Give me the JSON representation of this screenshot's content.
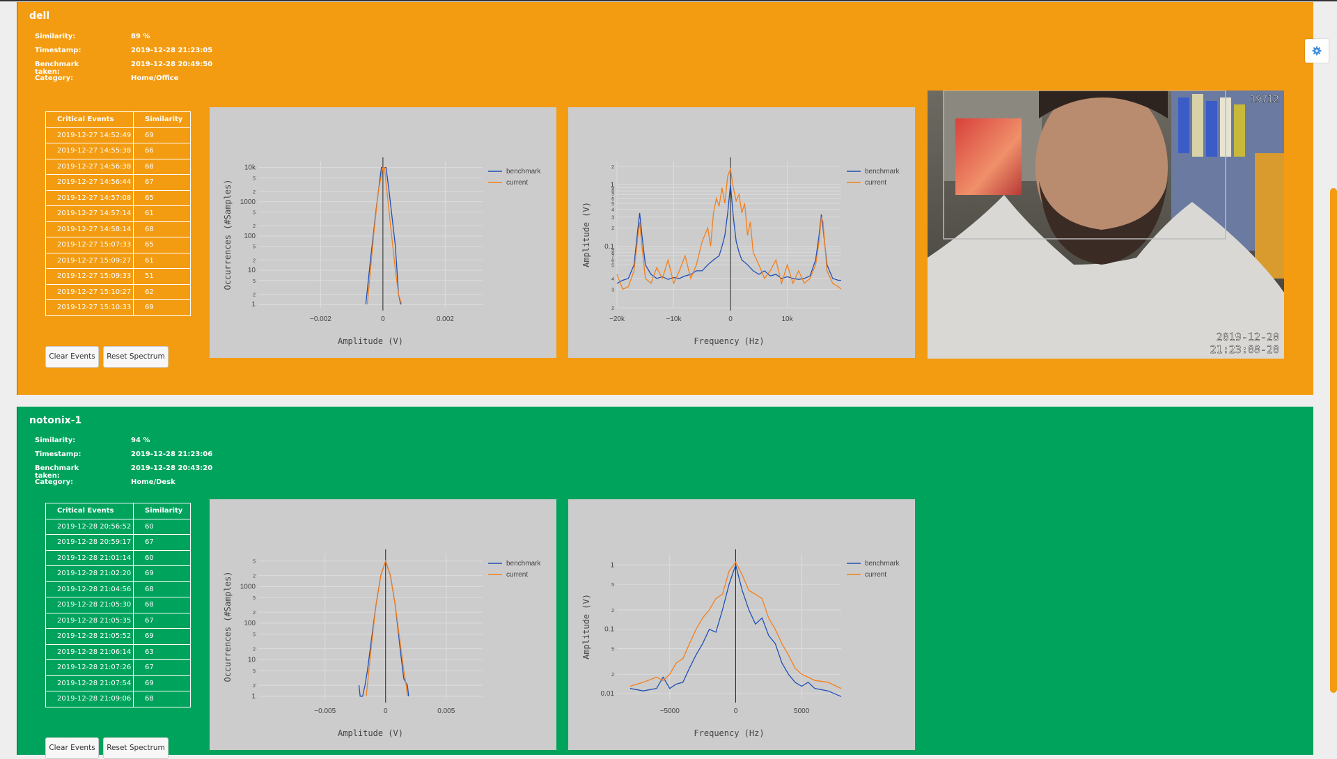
{
  "devices": [
    {
      "name": "dell",
      "status_color": "#f39c12",
      "info": [
        {
          "label": "Similarity:",
          "value": "89 %"
        },
        {
          "label": "Timestamp:",
          "value": "2019-12-28 21:23:05"
        },
        {
          "label": "Benchmark taken:",
          "value": "2019-12-28 20:49:50"
        },
        {
          "label": "Category:",
          "value": "Home/Office"
        }
      ],
      "events_header": {
        "col1": "Critical Events",
        "col2": "Similarity"
      },
      "events": [
        {
          "time": "2019-12-27 14:52:49",
          "sim": "69"
        },
        {
          "time": "2019-12-27 14:55:38",
          "sim": "66"
        },
        {
          "time": "2019-12-27 14:56:38",
          "sim": "68"
        },
        {
          "time": "2019-12-27 14:56:44",
          "sim": "67"
        },
        {
          "time": "2019-12-27 14:57:08",
          "sim": "65"
        },
        {
          "time": "2019-12-27 14:57:14",
          "sim": "61"
        },
        {
          "time": "2019-12-27 14:58:14",
          "sim": "68"
        },
        {
          "time": "2019-12-27 15:07:33",
          "sim": "65"
        },
        {
          "time": "2019-12-27 15:09:27",
          "sim": "61"
        },
        {
          "time": "2019-12-27 15:09:33",
          "sim": "51"
        },
        {
          "time": "2019-12-27 15:10:27",
          "sim": "62"
        },
        {
          "time": "2019-12-27 15:10:33",
          "sim": "69"
        }
      ],
      "buttons": {
        "clear": "Clear Events",
        "reset": "Reset Spectrum"
      },
      "camera": {
        "frame_no": "19712",
        "date": "2019-12-28",
        "time": "21:23:08-20"
      }
    },
    {
      "name": "notonix-1",
      "status_color": "#00a35c",
      "info": [
        {
          "label": "Similarity:",
          "value": "94 %"
        },
        {
          "label": "Timestamp:",
          "value": "2019-12-28 21:23:06"
        },
        {
          "label": "Benchmark taken:",
          "value": "2019-12-28 20:43:20"
        },
        {
          "label": "Category:",
          "value": "Home/Desk"
        }
      ],
      "events_header": {
        "col1": "Critical Events",
        "col2": "Similarity"
      },
      "events": [
        {
          "time": "2019-12-28 20:56:52",
          "sim": "60"
        },
        {
          "time": "2019-12-28 20:59:17",
          "sim": "67"
        },
        {
          "time": "2019-12-28 21:01:14",
          "sim": "60"
        },
        {
          "time": "2019-12-28 21:02:20",
          "sim": "69"
        },
        {
          "time": "2019-12-28 21:04:56",
          "sim": "68"
        },
        {
          "time": "2019-12-28 21:05:30",
          "sim": "68"
        },
        {
          "time": "2019-12-28 21:05:35",
          "sim": "67"
        },
        {
          "time": "2019-12-28 21:05:52",
          "sim": "69"
        },
        {
          "time": "2019-12-28 21:06:14",
          "sim": "63"
        },
        {
          "time": "2019-12-28 21:07:26",
          "sim": "67"
        },
        {
          "time": "2019-12-28 21:07:54",
          "sim": "69"
        },
        {
          "time": "2019-12-28 21:09:06",
          "sim": "68"
        }
      ],
      "buttons": {
        "clear": "Clear Events",
        "reset": "Reset Spectrum"
      }
    }
  ],
  "chart_data": [
    {
      "type": "line",
      "device": "dell",
      "kind": "histogram",
      "xlabel": "Amplitude (V)",
      "ylabel": "Occurrences (#Samples)",
      "y_scale": "log",
      "ylim": [
        0.8,
        15000
      ],
      "xlim": [
        -0.004,
        0.0032
      ],
      "xticks": [
        {
          "v": -0.002,
          "t": "−0.002"
        },
        {
          "v": 0,
          "t": "0"
        },
        {
          "v": 0.002,
          "t": "0.002"
        }
      ],
      "yticks": [
        {
          "v": 1,
          "t": "1"
        },
        {
          "v": 2,
          "t": "2"
        },
        {
          "v": 5,
          "t": "5"
        },
        {
          "v": 10,
          "t": "10"
        },
        {
          "v": 20,
          "t": "2"
        },
        {
          "v": 50,
          "t": "5"
        },
        {
          "v": 100,
          "t": "100"
        },
        {
          "v": 200,
          "t": "2"
        },
        {
          "v": 500,
          "t": "5"
        },
        {
          "v": 1000,
          "t": "1000"
        },
        {
          "v": 2000,
          "t": "2"
        },
        {
          "v": 5000,
          "t": "5"
        },
        {
          "v": 10000,
          "t": "10k"
        }
      ],
      "legend_position": "top-right",
      "series": [
        {
          "name": "benchmark",
          "color": "#1f4fb4",
          "x": [
            -0.00055,
            -0.0004,
            -0.0002,
            -5e-05,
            0.0001,
            0.0002,
            0.0004,
            0.0005,
            0.00057
          ],
          "y": [
            1,
            20,
            800,
            10000,
            10000,
            2000,
            50,
            2,
            1
          ]
        },
        {
          "name": "current",
          "color": "#f47f1a",
          "x": [
            -0.0005,
            -0.0003,
            -0.00015,
            0,
            5e-05,
            0.0002,
            0.0004,
            0.0005,
            0.0006
          ],
          "y": [
            1,
            100,
            2000,
            10000,
            10000,
            500,
            10,
            2,
            1
          ]
        }
      ]
    },
    {
      "type": "line",
      "device": "dell",
      "kind": "spectrum",
      "xlabel": "Frequency (Hz)",
      "ylabel": "Amplitude (V)",
      "y_scale": "log",
      "ylim": [
        0.01,
        2.4
      ],
      "xlim": [
        -20000,
        19500
      ],
      "xticks": [
        {
          "v": -20000,
          "t": "−20k"
        },
        {
          "v": -10000,
          "t": "−10k"
        },
        {
          "v": 0,
          "t": "0"
        },
        {
          "v": 10000,
          "t": "10k"
        }
      ],
      "yticks": [
        {
          "v": 0.01,
          "t": "2"
        },
        {
          "v": 0.02,
          "t": "3"
        },
        {
          "v": 0.03,
          "t": "4"
        },
        {
          "v": 0.05,
          "t": "5"
        },
        {
          "v": 0.06,
          "t": "6"
        },
        {
          "v": 0.07,
          "t": "7"
        },
        {
          "v": 0.08,
          "t": "8"
        },
        {
          "v": 0.09,
          "t": "9"
        },
        {
          "v": 0.1,
          "t": "0.1"
        },
        {
          "v": 0.2,
          "t": "2"
        },
        {
          "v": 0.3,
          "t": "3"
        },
        {
          "v": 0.4,
          "t": "4"
        },
        {
          "v": 0.5,
          "t": "5"
        },
        {
          "v": 0.6,
          "t": "6"
        },
        {
          "v": 0.7,
          "t": "7"
        },
        {
          "v": 0.8,
          "t": "8"
        },
        {
          "v": 0.9,
          "t": "9"
        },
        {
          "v": 1,
          "t": "1"
        },
        {
          "v": 2,
          "t": "2"
        }
      ],
      "legend_position": "top-right",
      "series": [
        {
          "name": "benchmark",
          "color": "#1f4fb4",
          "x": [
            -20000,
            -19000,
            -18000,
            -17000,
            -16300,
            -16000,
            -15600,
            -15000,
            -14000,
            -13000,
            -12000,
            -11000,
            -10000,
            -9000,
            -8000,
            -7000,
            -6000,
            -5000,
            -4000,
            -3000,
            -2000,
            -1500,
            -1000,
            -500,
            0,
            500,
            1000,
            1500,
            2000,
            3000,
            4000,
            5000,
            6000,
            7000,
            8000,
            9000,
            10000,
            11000,
            12000,
            13000,
            14000,
            15000,
            15600,
            16000,
            16300,
            17000,
            18000,
            19000,
            19500
          ],
          "y": [
            0.025,
            0.028,
            0.03,
            0.05,
            0.2,
            0.35,
            0.15,
            0.05,
            0.035,
            0.03,
            0.032,
            0.029,
            0.031,
            0.03,
            0.033,
            0.035,
            0.04,
            0.04,
            0.05,
            0.06,
            0.07,
            0.1,
            0.15,
            0.35,
            1.0,
            0.3,
            0.12,
            0.08,
            0.06,
            0.05,
            0.04,
            0.035,
            0.04,
            0.033,
            0.035,
            0.03,
            0.032,
            0.03,
            0.029,
            0.03,
            0.033,
            0.06,
            0.15,
            0.33,
            0.2,
            0.05,
            0.03,
            0.028,
            0.028
          ]
        },
        {
          "name": "current",
          "color": "#f47f1a",
          "x": [
            -20000,
            -19000,
            -18000,
            -17000,
            -16300,
            -16000,
            -15600,
            -15000,
            -14000,
            -13000,
            -12000,
            -11000,
            -10000,
            -9000,
            -8000,
            -7000,
            -6000,
            -5000,
            -4000,
            -3500,
            -3000,
            -2500,
            -2000,
            -1500,
            -1000,
            -500,
            0,
            500,
            1000,
            1500,
            2000,
            2500,
            3000,
            3500,
            4000,
            5000,
            6000,
            7000,
            8000,
            9000,
            10000,
            11000,
            12000,
            13000,
            14000,
            15000,
            15600,
            16000,
            16300,
            17000,
            18000,
            19000,
            19500
          ],
          "y": [
            0.035,
            0.02,
            0.022,
            0.04,
            0.15,
            0.25,
            0.1,
            0.03,
            0.025,
            0.045,
            0.03,
            0.06,
            0.025,
            0.04,
            0.07,
            0.03,
            0.05,
            0.12,
            0.2,
            0.1,
            0.35,
            0.6,
            0.45,
            0.9,
            0.5,
            1.4,
            1.8,
            0.9,
            0.55,
            0.7,
            0.35,
            0.5,
            0.15,
            0.25,
            0.08,
            0.05,
            0.03,
            0.04,
            0.06,
            0.025,
            0.05,
            0.025,
            0.04,
            0.025,
            0.03,
            0.05,
            0.12,
            0.3,
            0.25,
            0.04,
            0.025,
            0.022,
            0.02
          ]
        }
      ]
    },
    {
      "type": "line",
      "device": "notonix-1",
      "kind": "histogram",
      "xlabel": "Amplitude (V)",
      "ylabel": "Occurrences (#Samples)",
      "y_scale": "log",
      "ylim": [
        0.8,
        8000
      ],
      "xlim": [
        -0.0105,
        0.008
      ],
      "xticks": [
        {
          "v": -0.005,
          "t": "−0.005"
        },
        {
          "v": 0,
          "t": "0"
        },
        {
          "v": 0.005,
          "t": "0.005"
        }
      ],
      "yticks": [
        {
          "v": 1,
          "t": "1"
        },
        {
          "v": 2,
          "t": "2"
        },
        {
          "v": 5,
          "t": "5"
        },
        {
          "v": 10,
          "t": "10"
        },
        {
          "v": 20,
          "t": "2"
        },
        {
          "v": 50,
          "t": "5"
        },
        {
          "v": 100,
          "t": "100"
        },
        {
          "v": 200,
          "t": "2"
        },
        {
          "v": 500,
          "t": "5"
        },
        {
          "v": 1000,
          "t": "1000"
        },
        {
          "v": 2000,
          "t": "2"
        },
        {
          "v": 5000,
          "t": "5"
        }
      ],
      "legend_position": "top-right",
      "series": [
        {
          "name": "benchmark",
          "color": "#1f4fb4",
          "x": [
            -0.0022,
            -0.0021,
            -0.0019,
            -0.0017,
            -0.0015,
            -0.0012,
            -0.0008,
            -0.0004,
            0,
            0.0004,
            0.0008,
            0.0012,
            0.0015,
            0.0018,
            0.0019
          ],
          "y": [
            2,
            1,
            1,
            2,
            5,
            30,
            300,
            2000,
            5000,
            2000,
            300,
            20,
            3,
            2,
            1
          ]
        },
        {
          "name": "current",
          "color": "#f47f1a",
          "x": [
            -0.0016,
            -0.0015,
            -0.0012,
            -0.0008,
            -0.0004,
            0,
            0.0004,
            0.0008,
            0.0012,
            0.0015,
            0.0017,
            0.0018
          ],
          "y": [
            1,
            2,
            20,
            300,
            2000,
            5000,
            2000,
            300,
            30,
            5,
            2,
            1
          ]
        }
      ]
    },
    {
      "type": "line",
      "device": "notonix-1",
      "kind": "spectrum",
      "xlabel": "Frequency (Hz)",
      "ylabel": "Amplitude (V)",
      "y_scale": "log",
      "ylim": [
        0.008,
        1.5
      ],
      "xlim": [
        -9000,
        8000
      ],
      "xticks": [
        {
          "v": -5000,
          "t": "−5000"
        },
        {
          "v": 0,
          "t": "0"
        },
        {
          "v": 5000,
          "t": "5000"
        }
      ],
      "yticks": [
        {
          "v": 0.01,
          "t": "0.01"
        },
        {
          "v": 0.02,
          "t": "2"
        },
        {
          "v": 0.05,
          "t": "5"
        },
        {
          "v": 0.1,
          "t": "0.1"
        },
        {
          "v": 0.2,
          "t": "2"
        },
        {
          "v": 0.5,
          "t": "5"
        },
        {
          "v": 1,
          "t": "1"
        }
      ],
      "legend_position": "top-right",
      "series": [
        {
          "name": "benchmark",
          "color": "#1f4fb4",
          "x": [
            -8000,
            -7000,
            -6000,
            -5500,
            -5000,
            -4500,
            -4000,
            -3500,
            -3000,
            -2500,
            -2000,
            -1500,
            -1000,
            -500,
            0,
            500,
            1000,
            1500,
            2000,
            2500,
            3000,
            3500,
            4000,
            4500,
            5000,
            5500,
            6000,
            7000,
            8000
          ],
          "y": [
            0.012,
            0.011,
            0.012,
            0.018,
            0.012,
            0.014,
            0.015,
            0.025,
            0.04,
            0.06,
            0.1,
            0.09,
            0.2,
            0.5,
            1.0,
            0.4,
            0.2,
            0.12,
            0.15,
            0.08,
            0.06,
            0.03,
            0.02,
            0.015,
            0.013,
            0.015,
            0.012,
            0.011,
            0.009
          ]
        },
        {
          "name": "current",
          "color": "#f47f1a",
          "x": [
            -8000,
            -7000,
            -6000,
            -5500,
            -5000,
            -4500,
            -4000,
            -3500,
            -3000,
            -2500,
            -2000,
            -1500,
            -1000,
            -500,
            0,
            500,
            1000,
            1500,
            2000,
            2500,
            3000,
            3500,
            4000,
            4500,
            5000,
            5500,
            6000,
            7000,
            8000
          ],
          "y": [
            0.013,
            0.015,
            0.018,
            0.016,
            0.02,
            0.03,
            0.035,
            0.06,
            0.1,
            0.15,
            0.2,
            0.3,
            0.35,
            0.8,
            1.1,
            0.7,
            0.4,
            0.35,
            0.3,
            0.15,
            0.1,
            0.06,
            0.04,
            0.025,
            0.02,
            0.018,
            0.016,
            0.015,
            0.012
          ]
        }
      ]
    }
  ],
  "icons": {
    "settings": "gear-icon"
  }
}
